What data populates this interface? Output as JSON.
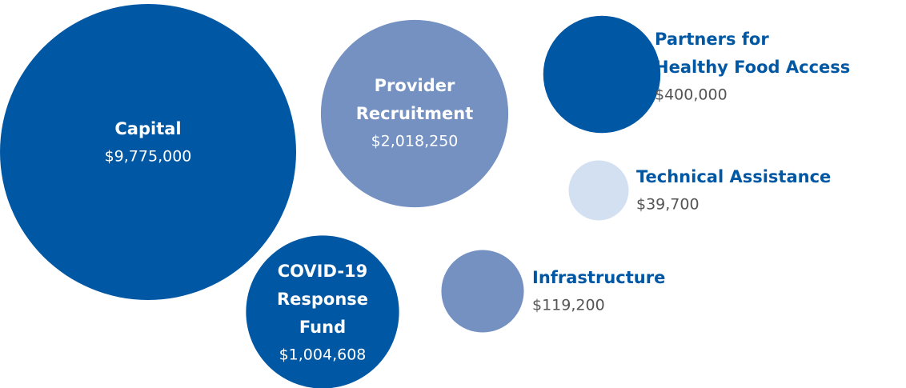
{
  "chart_data": {
    "type": "bubble",
    "categories": [
      [
        "Capital"
      ],
      [
        "Provider",
        "Recruitment"
      ],
      [
        "Partners for",
        "Healthy Food Access"
      ],
      [
        "Technical Assistance"
      ],
      [
        "COVID-19",
        "Response",
        "Fund"
      ],
      [
        "Infrastructure"
      ]
    ],
    "values": [
      9775000,
      2018250,
      400000,
      39700,
      1004608,
      119200
    ],
    "value_labels": [
      "$9,775,000",
      "$2,018,250",
      "$400,000",
      "$39,700",
      "$1,004,608",
      "$119,200"
    ],
    "colors": [
      "#0057a3",
      "#7491c2",
      "#0057a3",
      "#d3e0f2",
      "#0057a3",
      "#7491c2"
    ]
  }
}
